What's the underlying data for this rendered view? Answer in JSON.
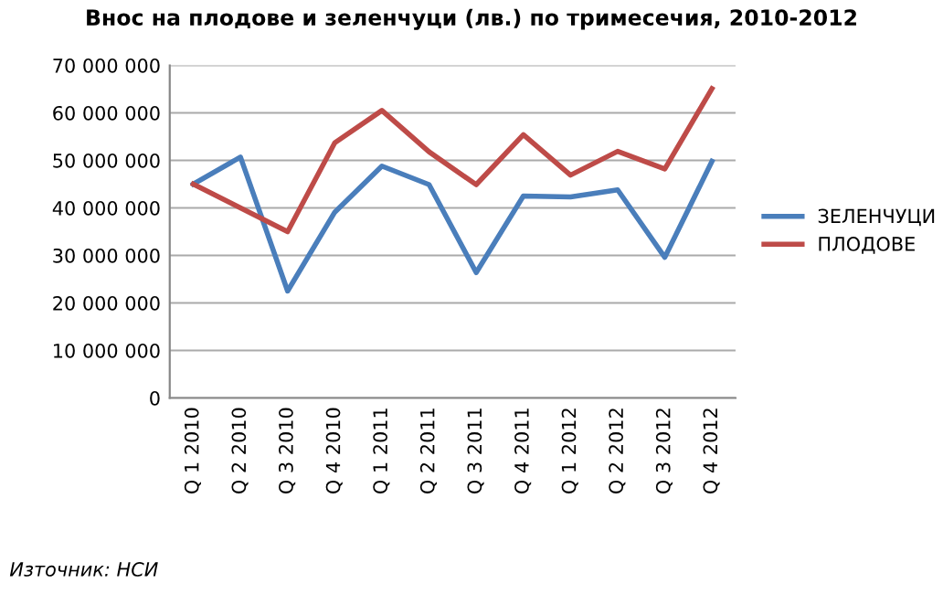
{
  "chart_data": {
    "type": "line",
    "title": "Внос на плодове и зеленчуци (лв.) по тримесечия, 2010-2012",
    "categories": [
      "Q 1 2010",
      "Q 2 2010",
      "Q 3 2010",
      "Q 4 2010",
      "Q 1 2011",
      "Q 2 2011",
      "Q 3 2011",
      "Q 4 2011",
      "Q 1 2012",
      "Q 2 2012",
      "Q 3 2012",
      "Q 4 2012"
    ],
    "series": [
      {
        "name": "ЗЕЛЕНЧУЦИ",
        "color": "#4a7ebb",
        "values": [
          45000000,
          50700000,
          22500000,
          39100000,
          48800000,
          44900000,
          26400000,
          42500000,
          42300000,
          43800000,
          29600000,
          49800000
        ]
      },
      {
        "name": "ПЛОДОВЕ",
        "color": "#be4b48",
        "values": [
          45000000,
          40000000,
          35000000,
          53700000,
          60500000,
          51800000,
          44900000,
          55400000,
          46900000,
          51900000,
          48200000,
          65100000
        ]
      }
    ],
    "ylim": [
      0,
      70000000
    ],
    "yticks": [
      0,
      {
        "value": 10000000,
        "label": "10 000 000"
      },
      {
        "value": 20000000,
        "label": "20 000 000"
      },
      {
        "value": 30000000,
        "label": "30 000 000"
      },
      {
        "value": 40000000,
        "label": "40 000 000"
      },
      {
        "value": 50000000,
        "label": "50 000 000"
      },
      {
        "value": 60000000,
        "label": "60 000 000"
      },
      {
        "value": 70000000,
        "label": "70 000 000"
      }
    ],
    "grid": "y",
    "legend": "right",
    "marker": "none",
    "line_style": "solid",
    "annotations": [
      "Източник: НСИ"
    ]
  }
}
